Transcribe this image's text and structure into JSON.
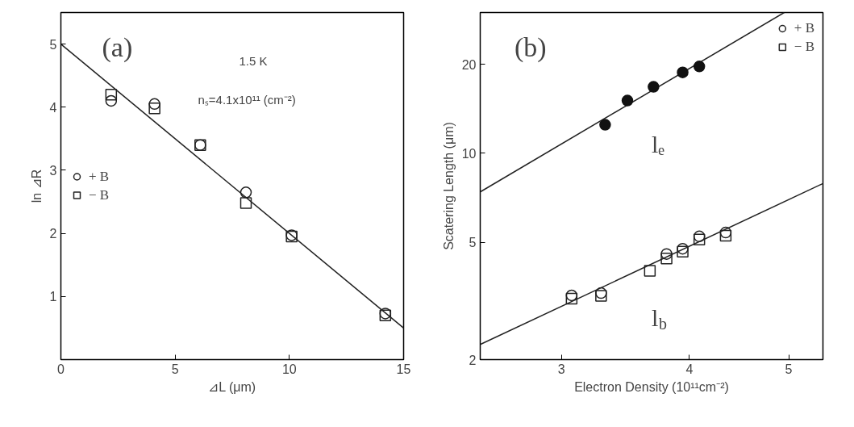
{
  "chart_data": [
    {
      "type": "scatter",
      "xlabel": "⊿L (μm)",
      "ylabel": "ln ⊿R",
      "annotations": [
        "(a)",
        "1.5 K",
        "nₛ=4.1x10¹¹ (cm⁻²)"
      ],
      "xlim": [
        0,
        15
      ],
      "ylim": [
        0,
        5.5
      ],
      "xticks": [
        0,
        5,
        10,
        15
      ],
      "yticks": [
        1,
        2,
        3,
        4,
        5
      ],
      "grid": false,
      "legend": "left",
      "series": [
        {
          "name": "+ B",
          "marker": "circle",
          "color": "#222222",
          "x": [
            2.2,
            4.1,
            6.1,
            8.1,
            10.1,
            14.2
          ],
          "values": [
            4.1,
            4.05,
            3.4,
            2.65,
            1.97,
            0.73
          ]
        },
        {
          "name": "− B",
          "marker": "square",
          "color": "#222222",
          "x": [
            2.2,
            4.1,
            6.1,
            8.1,
            10.1,
            14.2
          ],
          "values": [
            4.2,
            3.98,
            3.4,
            2.48,
            1.95,
            0.7
          ]
        },
        {
          "type": "line",
          "color": "#222222",
          "x": [
            0,
            15
          ],
          "values": [
            5.0,
            0.5
          ]
        }
      ]
    },
    {
      "type": "scatter",
      "xlabel": "Electron Density (10¹¹cm⁻²)",
      "ylabel": "Scatering Length (μm)",
      "annotations": [
        "(b)",
        "lₑ",
        "l$_{b}$"
      ],
      "log": "xy",
      "xlim": [
        2.5,
        5.4
      ],
      "ylim": [
        2,
        30
      ],
      "xticks": [
        3,
        4,
        5
      ],
      "yticks": [
        2,
        5,
        10,
        20
      ],
      "grid": false,
      "legend": "top right",
      "series": [
        {
          "marker": "circle_filled",
          "color": "#111111",
          "x": [
            3.31,
            3.48,
            3.69,
            3.94,
            4.09
          ],
          "values": [
            12.5,
            15.1,
            16.8,
            18.8,
            19.7
          ]
        },
        {
          "name": "+ B",
          "marker": "circle",
          "color": "#222222",
          "x": [
            3.07,
            3.28,
            3.66,
            3.8,
            3.94,
            4.09,
            4.34
          ],
          "values": [
            3.3,
            3.36,
            null,
            4.56,
            4.75,
            5.23,
            5.39
          ]
        },
        {
          "name": "− B",
          "marker": "square",
          "color": "#222222",
          "x": [
            3.07,
            3.28,
            3.66,
            3.8,
            3.94,
            4.09,
            4.34
          ],
          "values": [
            3.22,
            3.29,
            4.0,
            4.4,
            4.64,
            5.1,
            5.26
          ]
        },
        {
          "type": "line",
          "color": "#222222",
          "x": [
            2.5,
            4.95
          ],
          "values": [
            7.4,
            30
          ]
        },
        {
          "type": "line",
          "color": "#222222",
          "x": [
            2.5,
            5.4
          ],
          "values": [
            2.25,
            7.9
          ]
        }
      ]
    }
  ]
}
